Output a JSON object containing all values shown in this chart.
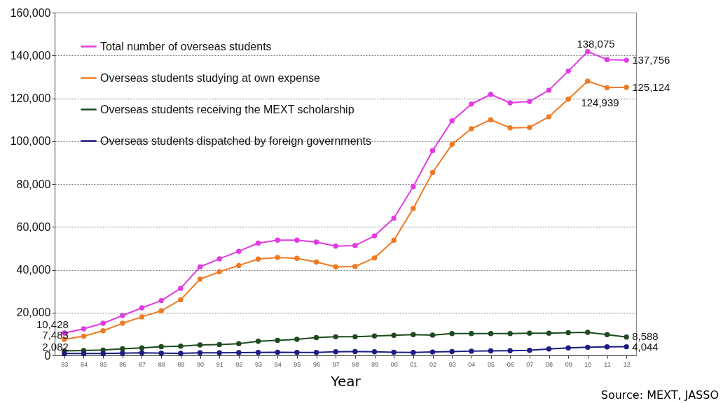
{
  "chart_data": {
    "type": "line",
    "categories": [
      "83",
      "84",
      "85",
      "86",
      "87",
      "88",
      "89",
      "90",
      "91",
      "92",
      "93",
      "94",
      "95",
      "96",
      "97",
      "98",
      "99",
      "00",
      "01",
      "02",
      "03",
      "04",
      "05",
      "06",
      "07",
      "08",
      "09",
      "10",
      "11",
      "12"
    ],
    "series": [
      {
        "name": "Total number of overseas students",
        "color": "#e23be2",
        "values": [
          10428,
          12400,
          15000,
          18600,
          22200,
          25600,
          31300,
          41300,
          45100,
          48600,
          52400,
          53800,
          53800,
          52900,
          51000,
          51300,
          55800,
          64000,
          78800,
          95600,
          109500,
          117300,
          121800,
          117900,
          118500,
          123800,
          132700,
          141800,
          138075,
          137756
        ],
        "value_labels": [
          "10,428",
          null,
          null,
          null,
          null,
          null,
          null,
          null,
          null,
          null,
          null,
          null,
          null,
          null,
          null,
          null,
          null,
          null,
          null,
          null,
          null,
          null,
          null,
          null,
          null,
          null,
          null,
          null,
          "138,075",
          "137,756"
        ]
      },
      {
        "name": "Overseas students studying at own expense",
        "color": "#f07a22",
        "values": [
          7483,
          9000,
          11500,
          15000,
          18000,
          20800,
          26000,
          35600,
          39000,
          42000,
          45000,
          45700,
          45300,
          43600,
          41300,
          41500,
          45500,
          53700,
          68600,
          85400,
          98500,
          105800,
          110000,
          106200,
          106400,
          111400,
          119600,
          128000,
          124939,
          125124
        ],
        "value_labels": [
          "7,483",
          null,
          null,
          null,
          null,
          null,
          null,
          null,
          null,
          null,
          null,
          null,
          null,
          null,
          null,
          null,
          null,
          null,
          null,
          null,
          null,
          null,
          null,
          null,
          null,
          null,
          null,
          null,
          "124,939",
          "125,124"
        ]
      },
      {
        "name": "Overseas students receiving the MEXT scholarship",
        "color": "#1e4a1e",
        "values": [
          2082,
          2300,
          2500,
          3100,
          3500,
          4100,
          4300,
          4900,
          5100,
          5500,
          6600,
          7000,
          7500,
          8300,
          8700,
          8700,
          9100,
          9400,
          9700,
          9500,
          10200,
          10200,
          10200,
          10200,
          10400,
          10400,
          10600,
          10800,
          9700,
          8588
        ],
        "value_labels": [
          "2,082",
          null,
          null,
          null,
          null,
          null,
          null,
          null,
          null,
          null,
          null,
          null,
          null,
          null,
          null,
          null,
          null,
          null,
          null,
          null,
          null,
          null,
          null,
          null,
          null,
          null,
          null,
          null,
          null,
          "8,588"
        ]
      },
      {
        "name": "Overseas students dispatched by foreign governments",
        "color": "#1c1c84",
        "values": [
          900,
          900,
          900,
          1100,
          1200,
          1100,
          1000,
          1200,
          1200,
          1300,
          1400,
          1500,
          1400,
          1400,
          1700,
          1800,
          1700,
          1500,
          1400,
          1600,
          1800,
          2000,
          2100,
          2200,
          2400,
          3000,
          3500,
          3800,
          4000,
          4044
        ],
        "value_labels": [
          null,
          null,
          null,
          null,
          null,
          null,
          null,
          null,
          null,
          null,
          null,
          null,
          null,
          null,
          null,
          null,
          null,
          null,
          null,
          null,
          null,
          null,
          null,
          null,
          null,
          null,
          null,
          null,
          null,
          "4,044"
        ]
      }
    ],
    "xlabel": "Year",
    "ylim": [
      0,
      160000
    ],
    "yticks": [
      {
        "value": 0,
        "label": "0"
      },
      {
        "value": 20000,
        "label": "20,000"
      },
      {
        "value": 40000,
        "label": "40,000"
      },
      {
        "value": 60000,
        "label": "60,000"
      },
      {
        "value": 80000,
        "label": "80,000"
      },
      {
        "value": 100000,
        "label": "100,000"
      },
      {
        "value": 120000,
        "label": "120,000"
      },
      {
        "value": 140000,
        "label": "140,000"
      },
      {
        "value": 160000,
        "label": "160,000"
      }
    ],
    "grid": "y",
    "legend": "top left",
    "marker": "circle",
    "annotations": [
      "Source: MEXT, JASSO"
    ]
  }
}
